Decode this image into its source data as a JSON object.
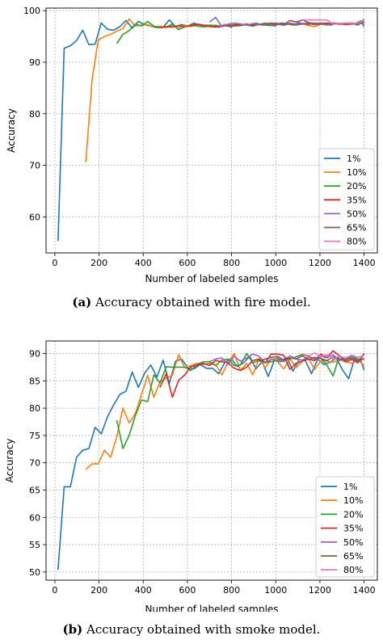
{
  "figure": {
    "caption_a_tag": "(a)",
    "caption_a_text": "Accuracy obtained with fire model.",
    "caption_b_tag": "(b)",
    "caption_b_text": "Accuracy obtained with smoke model."
  },
  "series_colors": [
    "#1f77b4",
    "#ff7f0e",
    "#2ca02c",
    "#d62728",
    "#9467bd",
    "#8c564b",
    "#e377c2"
  ],
  "chart_data": [
    {
      "type": "line",
      "xlabel": "Number of labeled samples",
      "ylabel": "Accuracy",
      "xlim": [
        -40,
        1460
      ],
      "ylim": [
        53,
        100.5
      ],
      "xticks": [
        0,
        200,
        400,
        600,
        800,
        1000,
        1200,
        1400
      ],
      "yticks": [
        60,
        70,
        80,
        90,
        100
      ],
      "grid": true,
      "legend": "bottom-right",
      "series": [
        {
          "name": "1%",
          "x": [
            14,
            42,
            70,
            98,
            126,
            154,
            182,
            210,
            238,
            266,
            294,
            322,
            350,
            378,
            406,
            434,
            462,
            490,
            518,
            546,
            574,
            602,
            630,
            658,
            686,
            714,
            742,
            770,
            798,
            826,
            854,
            882,
            910,
            938,
            966,
            994,
            1022,
            1050,
            1078,
            1106,
            1134,
            1162,
            1190,
            1218,
            1246,
            1274,
            1302,
            1330,
            1358,
            1386,
            1400
          ],
          "y": [
            55.3,
            92.7,
            93.2,
            94.2,
            96.2,
            93.4,
            93.5,
            97.6,
            96.4,
            96.2,
            96.9,
            98.1,
            96.6,
            97.9,
            97.3,
            97.0,
            96.7,
            96.8,
            98.2,
            96.9,
            97.3,
            97.0,
            97.6,
            97.1,
            97.2,
            97.0,
            96.8,
            97.3,
            96.8,
            97.5,
            97.3,
            97.1,
            97.6,
            97.2,
            97.4,
            97.0,
            97.6,
            97.5,
            97.2,
            97.7,
            97.3,
            97.5,
            97.4,
            97.6,
            97.2,
            97.5,
            97.4,
            97.6,
            97.5,
            98.0,
            96.9
          ]
        },
        {
          "name": "10%",
          "x": [
            140,
            168,
            196,
            224,
            252,
            280,
            308,
            336,
            364,
            392,
            420,
            448,
            476,
            504,
            532,
            560,
            588,
            616,
            644,
            672,
            700,
            728,
            756,
            784,
            812,
            840,
            868,
            896,
            924,
            952,
            980,
            1008,
            1036,
            1064,
            1092,
            1120,
            1148,
            1176,
            1204,
            1232,
            1260,
            1288,
            1316,
            1344,
            1372,
            1400
          ],
          "y": [
            70.6,
            86.6,
            94.3,
            95.0,
            95.4,
            96.0,
            96.5,
            98.4,
            97.0,
            97.2,
            97.3,
            96.8,
            97.0,
            96.7,
            97.1,
            96.7,
            97.2,
            96.9,
            97.2,
            96.8,
            97.0,
            97.2,
            96.9,
            97.3,
            97.1,
            97.2,
            97.4,
            97.0,
            97.3,
            97.5,
            97.1,
            97.4,
            97.2,
            97.6,
            97.3,
            97.5,
            97.1,
            96.9,
            97.4,
            97.2,
            97.6,
            97.3,
            97.5,
            97.4,
            97.7,
            97.6
          ]
        },
        {
          "name": "20%",
          "x": [
            280,
            308,
            336,
            364,
            392,
            420,
            448,
            476,
            504,
            532,
            560,
            588,
            616,
            644,
            672,
            700,
            728,
            756,
            784,
            812,
            840,
            868,
            896,
            924,
            952,
            980,
            1008,
            1036,
            1064,
            1092,
            1120,
            1148,
            1176,
            1204,
            1232,
            1260,
            1288,
            1316,
            1344,
            1372,
            1400
          ],
          "y": [
            93.6,
            95.4,
            96.1,
            97.4,
            97.0,
            97.9,
            97.0,
            96.7,
            96.8,
            97.4,
            96.3,
            96.9,
            97.2,
            97.0,
            96.9,
            97.2,
            97.1,
            96.9,
            97.3,
            97.0,
            97.1,
            97.3,
            97.0,
            97.4,
            97.2,
            97.1,
            97.5,
            97.3,
            97.4,
            97.2,
            97.5,
            97.3,
            97.6,
            97.4,
            97.3,
            97.5,
            97.4,
            97.6,
            97.5,
            97.2,
            97.9
          ]
        },
        {
          "name": "35%",
          "x": [
            476,
            504,
            532,
            560,
            588,
            616,
            644,
            672,
            700,
            728,
            756,
            784,
            812,
            840,
            868,
            896,
            924,
            952,
            980,
            1008,
            1036,
            1064,
            1092,
            1120,
            1148,
            1176,
            1204,
            1232,
            1260,
            1288,
            1316,
            1344,
            1372,
            1400
          ],
          "y": [
            96.7,
            96.9,
            96.8,
            97.1,
            96.9,
            97.1,
            97.4,
            97.2,
            96.9,
            96.8,
            97.1,
            97.0,
            97.3,
            97.2,
            97.4,
            97.2,
            97.3,
            97.5,
            97.3,
            97.4,
            97.2,
            97.5,
            97.3,
            97.4,
            97.5,
            97.3,
            97.4,
            97.6,
            97.4,
            97.5,
            97.3,
            97.4,
            97.6,
            97.5
          ]
        },
        {
          "name": "50%",
          "x": [
            700,
            728,
            756,
            784,
            812,
            840,
            868,
            896,
            924,
            952,
            980,
            1008,
            1036,
            1064,
            1092,
            1120,
            1148,
            1176,
            1204,
            1232,
            1260,
            1288,
            1316,
            1344,
            1372,
            1400
          ],
          "y": [
            97.8,
            98.7,
            96.9,
            97.4,
            97.6,
            97.4,
            97.2,
            97.5,
            97.3,
            97.6,
            97.4,
            97.5,
            97.3,
            97.6,
            97.4,
            97.5,
            97.6,
            97.4,
            97.5,
            97.3,
            97.6,
            97.4,
            97.5,
            97.6,
            97.4,
            97.6
          ]
        },
        {
          "name": "65%",
          "x": [
            924,
            952,
            980,
            1008,
            1036,
            1064,
            1092,
            1120,
            1148,
            1176,
            1204,
            1232,
            1260,
            1288,
            1316,
            1344,
            1372,
            1400
          ],
          "y": [
            97.3,
            97.4,
            97.6,
            97.5,
            97.2,
            98.1,
            97.8,
            98.2,
            97.7,
            97.5,
            97.6,
            97.4,
            97.6,
            97.5,
            97.4,
            97.6,
            97.5,
            98.3
          ]
        },
        {
          "name": "80%",
          "x": [
            1120,
            1148,
            1176,
            1204,
            1232,
            1260,
            1288,
            1316,
            1344,
            1372,
            1400
          ],
          "y": [
            98.2,
            98.2,
            98.2,
            98.2,
            98.2,
            97.4,
            97.5,
            97.6,
            97.5,
            97.6,
            98.2
          ]
        }
      ]
    },
    {
      "type": "line",
      "xlabel": "Number of labeled samples",
      "ylabel": "Accuracy",
      "xlim": [
        -40,
        1460
      ],
      "ylim": [
        48.5,
        92.3
      ],
      "xticks": [
        0,
        200,
        400,
        600,
        800,
        1000,
        1200,
        1400
      ],
      "yticks": [
        50,
        55,
        60,
        65,
        70,
        75,
        80,
        85,
        90
      ],
      "grid": true,
      "legend": "bottom-right",
      "series": [
        {
          "name": "1%",
          "x": [
            14,
            42,
            70,
            98,
            126,
            154,
            182,
            210,
            238,
            266,
            294,
            322,
            350,
            378,
            406,
            434,
            462,
            490,
            518,
            546,
            574,
            602,
            630,
            658,
            686,
            714,
            742,
            770,
            798,
            826,
            854,
            882,
            910,
            938,
            966,
            994,
            1022,
            1050,
            1078,
            1106,
            1134,
            1162,
            1190,
            1218,
            1246,
            1274,
            1302,
            1330,
            1358,
            1386,
            1400
          ],
          "y": [
            50.4,
            65.6,
            65.6,
            71.0,
            72.3,
            72.6,
            76.5,
            75.3,
            78.4,
            80.6,
            82.5,
            83.1,
            86.6,
            83.8,
            86.4,
            87.9,
            85.7,
            88.8,
            84.5,
            88.6,
            89.0,
            87.4,
            87.2,
            88.0,
            87.3,
            87.3,
            86.3,
            88.4,
            89.1,
            87.6,
            88.3,
            89.5,
            87.2,
            88.5,
            85.8,
            88.8,
            88.5,
            89.3,
            86.8,
            88.9,
            88.7,
            86.3,
            89.0,
            88.0,
            88.4,
            89.2,
            87.0,
            85.4,
            89.2,
            88.6,
            87.0
          ]
        },
        {
          "name": "10%",
          "x": [
            140,
            168,
            196,
            224,
            252,
            280,
            308,
            336,
            364,
            392,
            420,
            448,
            476,
            504,
            532,
            560,
            588,
            616,
            644,
            672,
            700,
            728,
            756,
            784,
            812,
            840,
            868,
            896,
            924,
            952,
            980,
            1008,
            1036,
            1064,
            1092,
            1120,
            1148,
            1176,
            1204,
            1232,
            1260,
            1288,
            1316,
            1344,
            1372,
            1400
          ],
          "y": [
            68.8,
            69.8,
            69.8,
            72.3,
            71.0,
            74.8,
            80.0,
            77.3,
            79.0,
            82.5,
            86.0,
            82.0,
            84.8,
            85.5,
            86.0,
            89.8,
            87.4,
            87.8,
            88.2,
            88.0,
            88.2,
            88.0,
            86.1,
            88.4,
            90.0,
            86.9,
            88.2,
            86.1,
            89.1,
            87.4,
            89.0,
            88.5,
            87.2,
            89.0,
            87.4,
            88.6,
            89.1,
            87.1,
            88.7,
            88.6,
            88.4,
            88.9,
            88.5,
            88.2,
            88.8,
            87.8
          ]
        },
        {
          "name": "20%",
          "x": [
            280,
            308,
            336,
            364,
            392,
            420,
            448,
            476,
            504,
            532,
            560,
            588,
            616,
            644,
            672,
            700,
            728,
            756,
            784,
            812,
            840,
            868,
            896,
            924,
            952,
            980,
            1008,
            1036,
            1064,
            1092,
            1120,
            1148,
            1176,
            1204,
            1232,
            1260,
            1288,
            1316,
            1344,
            1372,
            1400
          ],
          "y": [
            77.8,
            72.6,
            75.0,
            78.6,
            81.5,
            81.2,
            86.1,
            84.6,
            87.6,
            87.5,
            87.5,
            87.5,
            86.9,
            88.0,
            88.5,
            88.5,
            87.8,
            88.8,
            89.0,
            87.8,
            87.9,
            90.0,
            88.3,
            88.7,
            88.3,
            88.5,
            88.9,
            88.8,
            89.0,
            89.4,
            89.8,
            89.5,
            89.0,
            89.2,
            87.8,
            85.9,
            89.6,
            88.9,
            89.5,
            89.0,
            88.9
          ]
        },
        {
          "name": "35%",
          "x": [
            476,
            504,
            532,
            560,
            588,
            616,
            644,
            672,
            700,
            728,
            756,
            784,
            812,
            840,
            868,
            896,
            924,
            952,
            980,
            1008,
            1036,
            1064,
            1092,
            1120,
            1148,
            1176,
            1204,
            1232,
            1260,
            1288,
            1316,
            1344,
            1372,
            1400
          ],
          "y": [
            83.8,
            86.3,
            82.0,
            85.1,
            86.1,
            87.6,
            87.9,
            88.2,
            87.8,
            88.7,
            88.5,
            88.3,
            87.3,
            86.9,
            87.5,
            88.7,
            89.0,
            88.3,
            89.9,
            89.9,
            89.7,
            87.1,
            88.2,
            88.6,
            89.0,
            88.7,
            89.9,
            89.3,
            90.5,
            89.6,
            88.5,
            88.9,
            88.3,
            90.0
          ]
        },
        {
          "name": "50%",
          "x": [
            700,
            728,
            756,
            784,
            812,
            840,
            868,
            896,
            924,
            952,
            980,
            1008,
            1036,
            1064,
            1092,
            1120,
            1148,
            1176,
            1204,
            1232,
            1260,
            1288,
            1316,
            1344,
            1372,
            1400
          ],
          "y": [
            88.5,
            89.0,
            89.2,
            88.0,
            89.5,
            88.6,
            89.2,
            89.9,
            89.5,
            88.4,
            88.9,
            89.2,
            88.5,
            89.6,
            89.0,
            88.8,
            89.4,
            89.0,
            89.5,
            89.2,
            89.8,
            88.7,
            89.3,
            89.0,
            88.5,
            89.1
          ]
        },
        {
          "name": "65%",
          "x": [
            924,
            952,
            980,
            1008,
            1036,
            1064,
            1092,
            1120,
            1148,
            1176,
            1204,
            1232,
            1260,
            1288,
            1316,
            1344,
            1372,
            1400
          ],
          "y": [
            88.6,
            89.0,
            89.3,
            89.5,
            88.8,
            89.2,
            89.0,
            89.6,
            88.9,
            89.3,
            89.1,
            88.7,
            89.4,
            89.0,
            88.8,
            89.2,
            88.6,
            89.1
          ]
        },
        {
          "name": "80%",
          "x": [
            1120,
            1148,
            1176,
            1204,
            1232,
            1260,
            1288,
            1316,
            1344,
            1372,
            1400
          ],
          "y": [
            89.9,
            89.6,
            90.1,
            89.4,
            89.8,
            89.0,
            89.5,
            89.2,
            89.7,
            89.3,
            89.6
          ]
        }
      ]
    }
  ]
}
